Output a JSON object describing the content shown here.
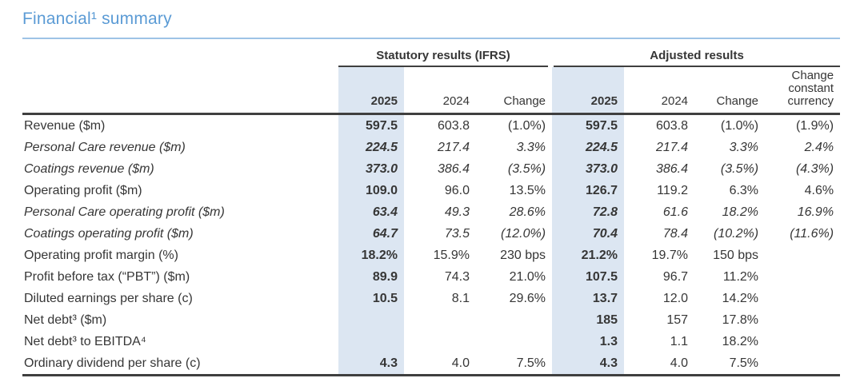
{
  "title": "Financial¹ summary",
  "colors": {
    "accent_blue": "#5b9bd5",
    "rule_blue": "#9dc3e6",
    "column_highlight": "#dce6f2",
    "line_dark": "#3f3f3f"
  },
  "table": {
    "group_statutory": "Statutory results (IFRS)",
    "group_adjusted": "Adjusted results",
    "col_headers": {
      "s2025": "2025",
      "s2024": "2024",
      "schange": "Change",
      "a2025": "2025",
      "a2024": "2024",
      "achange": "Change",
      "acc": "Change constant currency"
    },
    "rows": [
      {
        "label": "Revenue ($m)",
        "italic": false,
        "cells": [
          "597.5",
          "603.8",
          "(1.0%)",
          "597.5",
          "603.8",
          "(1.0%)",
          "(1.9%)"
        ]
      },
      {
        "label": "Personal Care revenue ($m)",
        "italic": true,
        "cells": [
          "224.5",
          "217.4",
          "3.3%",
          "224.5",
          "217.4",
          "3.3%",
          "2.4%"
        ]
      },
      {
        "label": "Coatings revenue ($m)",
        "italic": true,
        "cells": [
          "373.0",
          "386.4",
          "(3.5%)",
          "373.0",
          "386.4",
          "(3.5%)",
          "(4.3%)"
        ]
      },
      {
        "label": "Operating profit ($m)",
        "italic": false,
        "cells": [
          "109.0",
          "96.0",
          "13.5%",
          "126.7",
          "119.2",
          "6.3%",
          "4.6%"
        ]
      },
      {
        "label": "Personal Care operating profit ($m)",
        "italic": true,
        "cells": [
          "63.4",
          "49.3",
          "28.6%",
          "72.8",
          "61.6",
          "18.2%",
          "16.9%"
        ]
      },
      {
        "label": "Coatings operating profit ($m)",
        "italic": true,
        "cells": [
          "64.7",
          "73.5",
          "(12.0%)",
          "70.4",
          "78.4",
          "(10.2%)",
          "(11.6%)"
        ]
      },
      {
        "label": "Operating profit margin (%)",
        "italic": false,
        "cells": [
          "18.2%",
          "15.9%",
          "230 bps",
          "21.2%",
          "19.7%",
          "150 bps",
          ""
        ]
      },
      {
        "label": "Profit before tax (“PBT”) ($m)",
        "italic": false,
        "cells": [
          "89.9",
          "74.3",
          "21.0%",
          "107.5",
          "96.7",
          "11.2%",
          ""
        ]
      },
      {
        "label": "Diluted earnings per share (c)",
        "italic": false,
        "cells": [
          "10.5",
          "8.1",
          "29.6%",
          "13.7",
          "12.0",
          "14.2%",
          ""
        ]
      },
      {
        "label": "Net debt³ ($m)",
        "italic": false,
        "cells": [
          "",
          "",
          "",
          "185",
          "157",
          "17.8%",
          ""
        ]
      },
      {
        "label": "Net debt³ to EBITDA⁴",
        "italic": false,
        "cells": [
          "",
          "",
          "",
          "1.3",
          "1.1",
          "18.2%",
          ""
        ]
      },
      {
        "label": "Ordinary dividend per share (c)",
        "italic": false,
        "cells": [
          "4.3",
          "4.0",
          "7.5%",
          "4.3",
          "4.0",
          "7.5%",
          ""
        ]
      }
    ]
  }
}
